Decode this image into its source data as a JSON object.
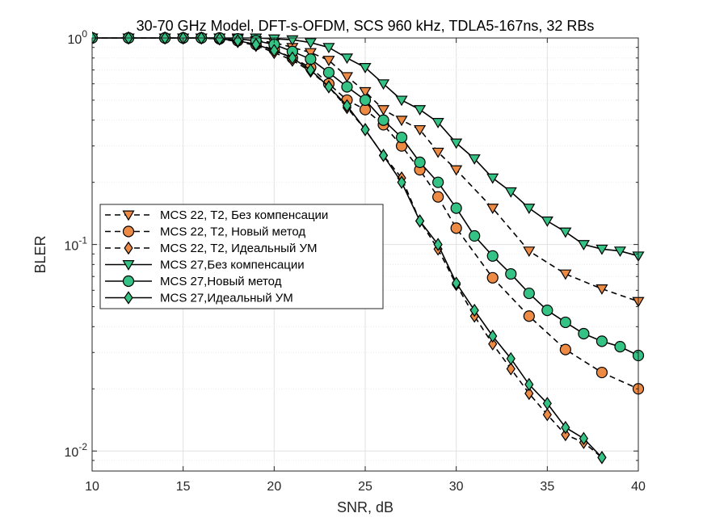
{
  "chart_data": {
    "type": "line",
    "title": "30-70 GHz Model, DFT-s-OFDM, SCS 960 kHz, TDLA5-167ns, 32 RBs",
    "xlabel": "SNR, dB",
    "ylabel": "BLER",
    "xlim": [
      10,
      40
    ],
    "ylim": [
      0.008,
      1
    ],
    "yscale": "log",
    "xticks": [
      "10",
      "15",
      "20",
      "25",
      "30",
      "35",
      "40"
    ],
    "ytick_labels": [
      {
        "value": 0.01,
        "base": "10",
        "exp": "-2"
      },
      {
        "value": 0.1,
        "base": "10",
        "exp": "-1"
      },
      {
        "value": 1,
        "base": "10",
        "exp": "0"
      }
    ],
    "grid": true,
    "legend_position": "center-left",
    "colors": {
      "orange": "#ED8B45",
      "green": "#35C285",
      "edge": "#000000"
    },
    "series": [
      {
        "name": "MCS 22, T2, Без компенсации",
        "marker": "triangle-down",
        "color": "#ED8B45",
        "dash": true,
        "x": [
          10,
          12,
          14,
          15,
          16,
          17,
          18,
          19,
          20,
          21,
          22,
          23,
          24,
          25,
          26,
          27,
          28,
          29,
          30,
          32,
          34,
          36,
          38,
          40
        ],
        "y": [
          1,
          1,
          1,
          1,
          1,
          1,
          0.99,
          0.97,
          0.95,
          0.9,
          0.85,
          0.78,
          0.65,
          0.55,
          0.45,
          0.4,
          0.36,
          0.28,
          0.23,
          0.15,
          0.093,
          0.072,
          0.061,
          0.053
        ]
      },
      {
        "name": "MCS 22, T2, Новый метод",
        "marker": "circle",
        "color": "#ED8B45",
        "dash": true,
        "x": [
          10,
          12,
          14,
          15,
          16,
          17,
          18,
          19,
          20,
          21,
          22,
          23,
          24,
          25,
          26,
          27,
          28,
          29,
          30,
          32,
          34,
          36,
          38,
          40
        ],
        "y": [
          1,
          1,
          1,
          1,
          1,
          0.99,
          0.97,
          0.93,
          0.88,
          0.8,
          0.72,
          0.6,
          0.5,
          0.45,
          0.38,
          0.3,
          0.23,
          0.17,
          0.12,
          0.069,
          0.045,
          0.031,
          0.024,
          0.02
        ]
      },
      {
        "name": "MCS 22, T2, Идеальный УМ",
        "marker": "diamond",
        "color": "#ED8B45",
        "dash": true,
        "x": [
          10,
          12,
          14,
          15,
          16,
          17,
          18,
          19,
          20,
          21,
          22,
          23,
          24,
          25,
          26,
          27,
          28,
          29,
          30,
          31,
          32,
          33,
          34,
          35,
          36,
          37,
          38
        ],
        "y": [
          1,
          1,
          1,
          1,
          1,
          0.99,
          0.96,
          0.92,
          0.85,
          0.78,
          0.69,
          0.58,
          0.46,
          0.36,
          0.27,
          0.21,
          0.13,
          0.095,
          0.064,
          0.045,
          0.033,
          0.025,
          0.019,
          0.015,
          0.012,
          0.011,
          0.0093
        ]
      },
      {
        "name": "MCS 27,Без компенсации",
        "marker": "triangle-down",
        "color": "#35C285",
        "dash": false,
        "x": [
          10,
          12,
          14,
          15,
          16,
          17,
          18,
          19,
          20,
          21,
          22,
          23,
          24,
          25,
          26,
          27,
          28,
          29,
          30,
          31,
          32,
          33,
          34,
          35,
          36,
          37,
          38,
          39,
          40
        ],
        "y": [
          1,
          1,
          1,
          1,
          1,
          1,
          1,
          1,
          0.99,
          0.98,
          0.95,
          0.9,
          0.8,
          0.72,
          0.6,
          0.5,
          0.45,
          0.39,
          0.31,
          0.26,
          0.21,
          0.18,
          0.15,
          0.13,
          0.115,
          0.1,
          0.095,
          0.093,
          0.088
        ]
      },
      {
        "name": "MCS 27,Новый метод",
        "marker": "circle",
        "color": "#35C285",
        "dash": false,
        "x": [
          10,
          12,
          14,
          15,
          16,
          17,
          18,
          19,
          20,
          21,
          22,
          23,
          24,
          25,
          26,
          27,
          28,
          29,
          30,
          31,
          32,
          33,
          34,
          35,
          36,
          37,
          38,
          39,
          40
        ],
        "y": [
          1,
          1,
          1,
          1,
          1,
          1,
          0.99,
          0.97,
          0.93,
          0.86,
          0.79,
          0.68,
          0.58,
          0.5,
          0.4,
          0.33,
          0.25,
          0.2,
          0.15,
          0.11,
          0.088,
          0.072,
          0.058,
          0.048,
          0.042,
          0.037,
          0.034,
          0.032,
          0.029
        ]
      },
      {
        "name": "MCS 27,Идеальный УМ",
        "marker": "diamond",
        "color": "#35C285",
        "dash": false,
        "x": [
          10,
          12,
          14,
          15,
          16,
          17,
          18,
          19,
          20,
          21,
          22,
          23,
          24,
          25,
          26,
          27,
          28,
          29,
          30,
          31,
          32,
          33,
          34,
          35,
          36,
          37,
          38
        ],
        "y": [
          1,
          1,
          1,
          1,
          1,
          0.99,
          0.97,
          0.93,
          0.87,
          0.8,
          0.7,
          0.58,
          0.47,
          0.36,
          0.27,
          0.2,
          0.13,
          0.1,
          0.065,
          0.048,
          0.036,
          0.028,
          0.021,
          0.017,
          0.013,
          0.0115,
          0.0093
        ]
      }
    ]
  }
}
